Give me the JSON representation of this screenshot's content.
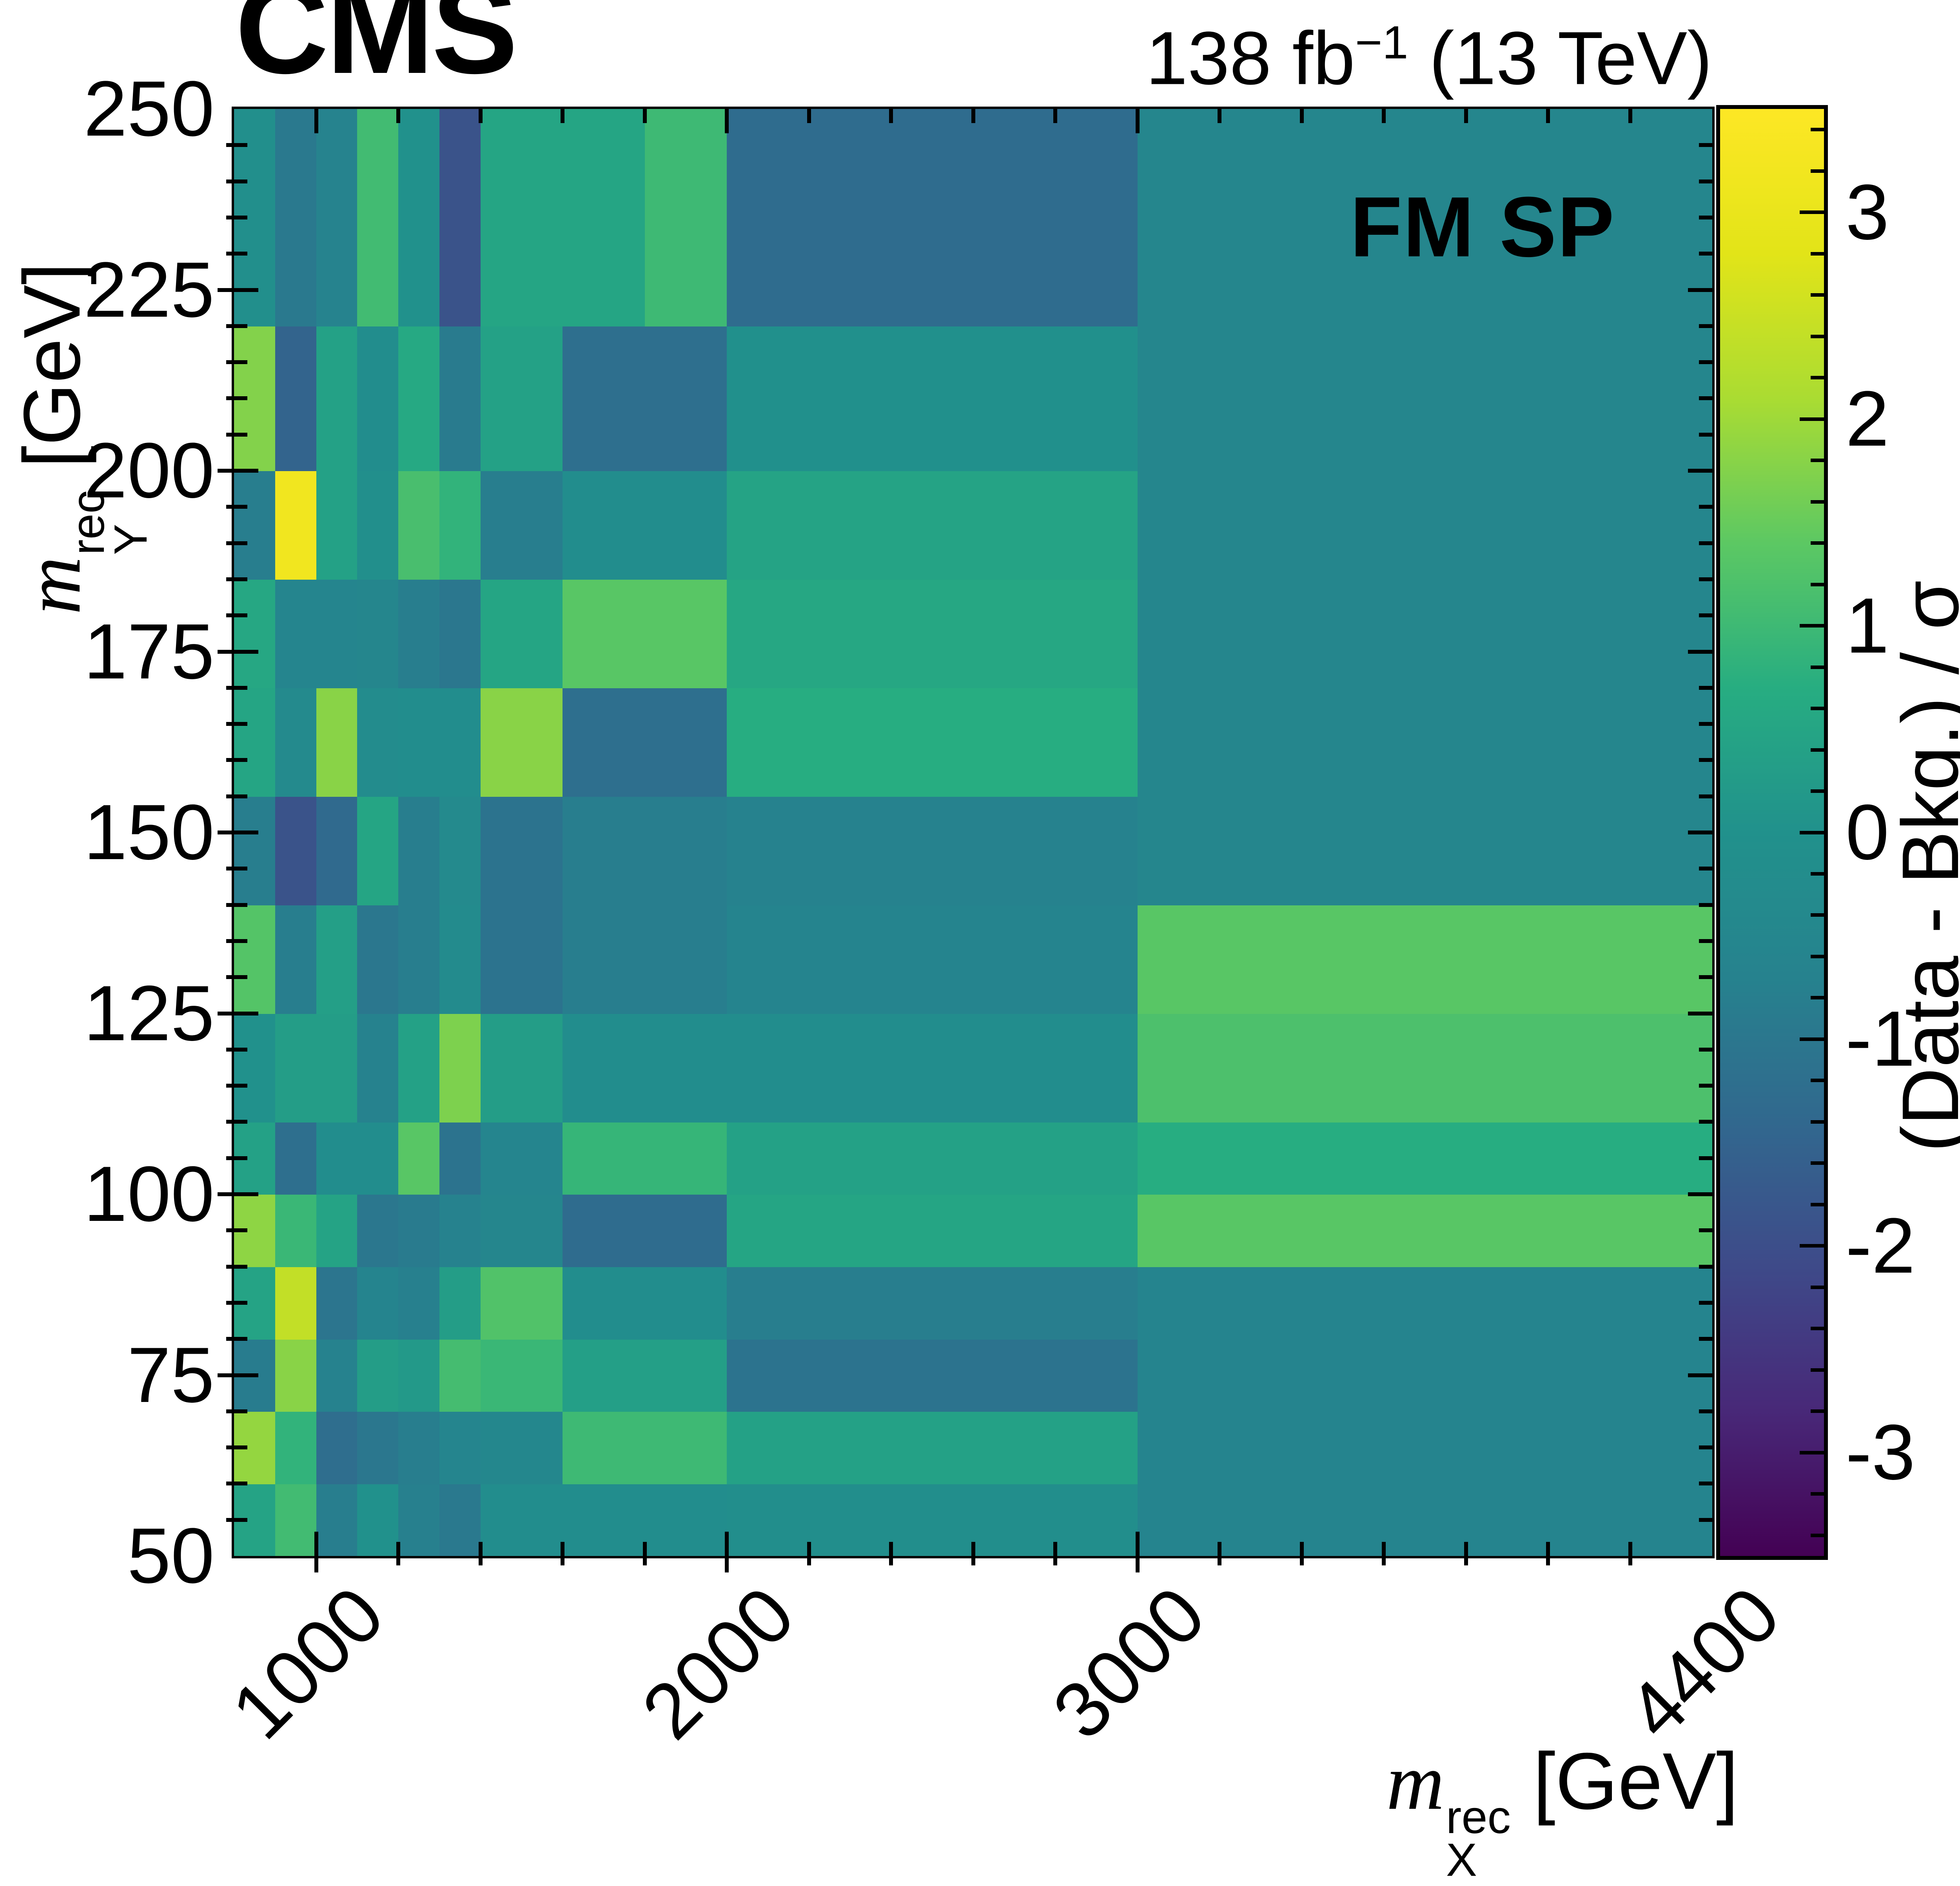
{
  "header": {
    "experiment": "CMS",
    "lumi_value": "138 fb",
    "lumi_exponent": "−1",
    "lumi_energy": " (13 TeV)"
  },
  "plot": {
    "region_label": "FM SP"
  },
  "x_axis": {
    "symbol": "m",
    "subscript": "X",
    "superscript": "rec",
    "unit": "[GeV]",
    "range": [
      800,
      4400
    ],
    "minor_tick_step": 200,
    "major_ticks": [
      {
        "value": 1000,
        "label": "1000"
      },
      {
        "value": 2000,
        "label": "2000"
      },
      {
        "value": 3000,
        "label": "3000"
      },
      {
        "value": 4400,
        "label": "4400"
      }
    ]
  },
  "y_axis": {
    "symbol": "m",
    "subscript": "Y",
    "superscript": "rec",
    "unit": "[GeV]",
    "range": [
      50,
      250
    ],
    "minor_tick_step": 5,
    "major_ticks": [
      {
        "value": 50,
        "label": "50"
      },
      {
        "value": 75,
        "label": "75"
      },
      {
        "value": 100,
        "label": "100"
      },
      {
        "value": 125,
        "label": "125"
      },
      {
        "value": 150,
        "label": "150"
      },
      {
        "value": 175,
        "label": "175"
      },
      {
        "value": 200,
        "label": "200"
      },
      {
        "value": 225,
        "label": "225"
      },
      {
        "value": 250,
        "label": "250"
      }
    ]
  },
  "colorbar": {
    "title": "(Data - Bkg.) / σ",
    "domain": [
      -3.5,
      3.5
    ],
    "minor_tick_step": 0.2,
    "colormap": "viridis",
    "major_ticks": [
      {
        "value": 3,
        "label": "3"
      },
      {
        "value": 2,
        "label": "2"
      },
      {
        "value": 1,
        "label": "1"
      },
      {
        "value": 0,
        "label": "0"
      },
      {
        "value": -1,
        "label": "-1"
      },
      {
        "value": -2,
        "label": "-2"
      },
      {
        "value": -3,
        "label": "-3"
      }
    ]
  },
  "chart_data": {
    "type": "heatmap",
    "title": "",
    "xlabel": "m_X^rec [GeV]",
    "ylabel": "m_Y^rec [GeV]",
    "zlabel": "(Data - Bkg.) / σ",
    "colormap": "viridis",
    "zlim": [
      -3.5,
      3.5
    ],
    "x_edges": [
      800,
      900,
      1000,
      1100,
      1200,
      1300,
      1400,
      1600,
      1800,
      2000,
      3000,
      4400
    ],
    "y_edges": [
      50,
      60,
      70,
      80,
      90,
      100,
      110,
      125,
      140,
      155,
      170,
      185,
      200,
      220,
      250
    ],
    "values": [
      [
        0.45,
        1.05,
        -0.8,
        0.0,
        -0.75,
        -0.95,
        -0.2,
        -0.2,
        -0.2,
        -0.15,
        -0.6
      ],
      [
        1.9,
        0.85,
        -1.25,
        -1.0,
        -0.8,
        -0.55,
        -0.45,
        1.0,
        1.0,
        0.4,
        -0.6
      ],
      [
        -0.85,
        1.8,
        -0.7,
        0.3,
        0.2,
        1.1,
        0.95,
        0.35,
        0.35,
        -1.1,
        -0.6
      ],
      [
        0.45,
        2.4,
        -1.05,
        -0.6,
        -0.75,
        0.3,
        1.25,
        -0.2,
        -0.2,
        -0.8,
        -0.6
      ],
      [
        1.85,
        0.95,
        0.45,
        -1.0,
        -0.9,
        -0.7,
        -0.5,
        -1.3,
        -1.3,
        0.5,
        1.35
      ],
      [
        0.4,
        -1.2,
        -0.2,
        -0.2,
        1.35,
        -1.1,
        -0.55,
        0.9,
        0.9,
        0.4,
        0.7
      ],
      [
        0.0,
        0.3,
        0.3,
        -0.7,
        0.4,
        1.7,
        0.3,
        -0.2,
        -0.2,
        -0.2,
        1.2
      ],
      [
        1.3,
        -0.8,
        0.35,
        -1.0,
        -0.8,
        -0.3,
        -1.1,
        -0.8,
        -0.8,
        -0.6,
        1.35
      ],
      [
        -0.8,
        -1.9,
        -1.35,
        0.5,
        -0.8,
        -0.35,
        -1.1,
        -0.8,
        -0.8,
        -0.7,
        -0.5
      ],
      [
        0.5,
        -0.35,
        1.8,
        -0.25,
        -0.2,
        -0.2,
        1.8,
        -1.2,
        -1.2,
        0.7,
        -0.5
      ],
      [
        0.55,
        -0.55,
        -0.55,
        -0.5,
        -0.8,
        -1.0,
        0.5,
        1.35,
        1.35,
        0.55,
        -0.5
      ],
      [
        -0.8,
        3.2,
        0.4,
        -0.1,
        1.15,
        0.85,
        -0.8,
        -0.2,
        -0.2,
        0.45,
        -0.5
      ],
      [
        1.75,
        -1.5,
        0.4,
        -0.2,
        0.6,
        -0.9,
        0.4,
        -1.2,
        -1.2,
        -0.05,
        -0.5
      ],
      [
        -0.1,
        -0.95,
        -0.65,
        1.05,
        0.0,
        -1.9,
        0.5,
        0.5,
        1.0,
        -1.3,
        -0.5
      ]
    ]
  }
}
